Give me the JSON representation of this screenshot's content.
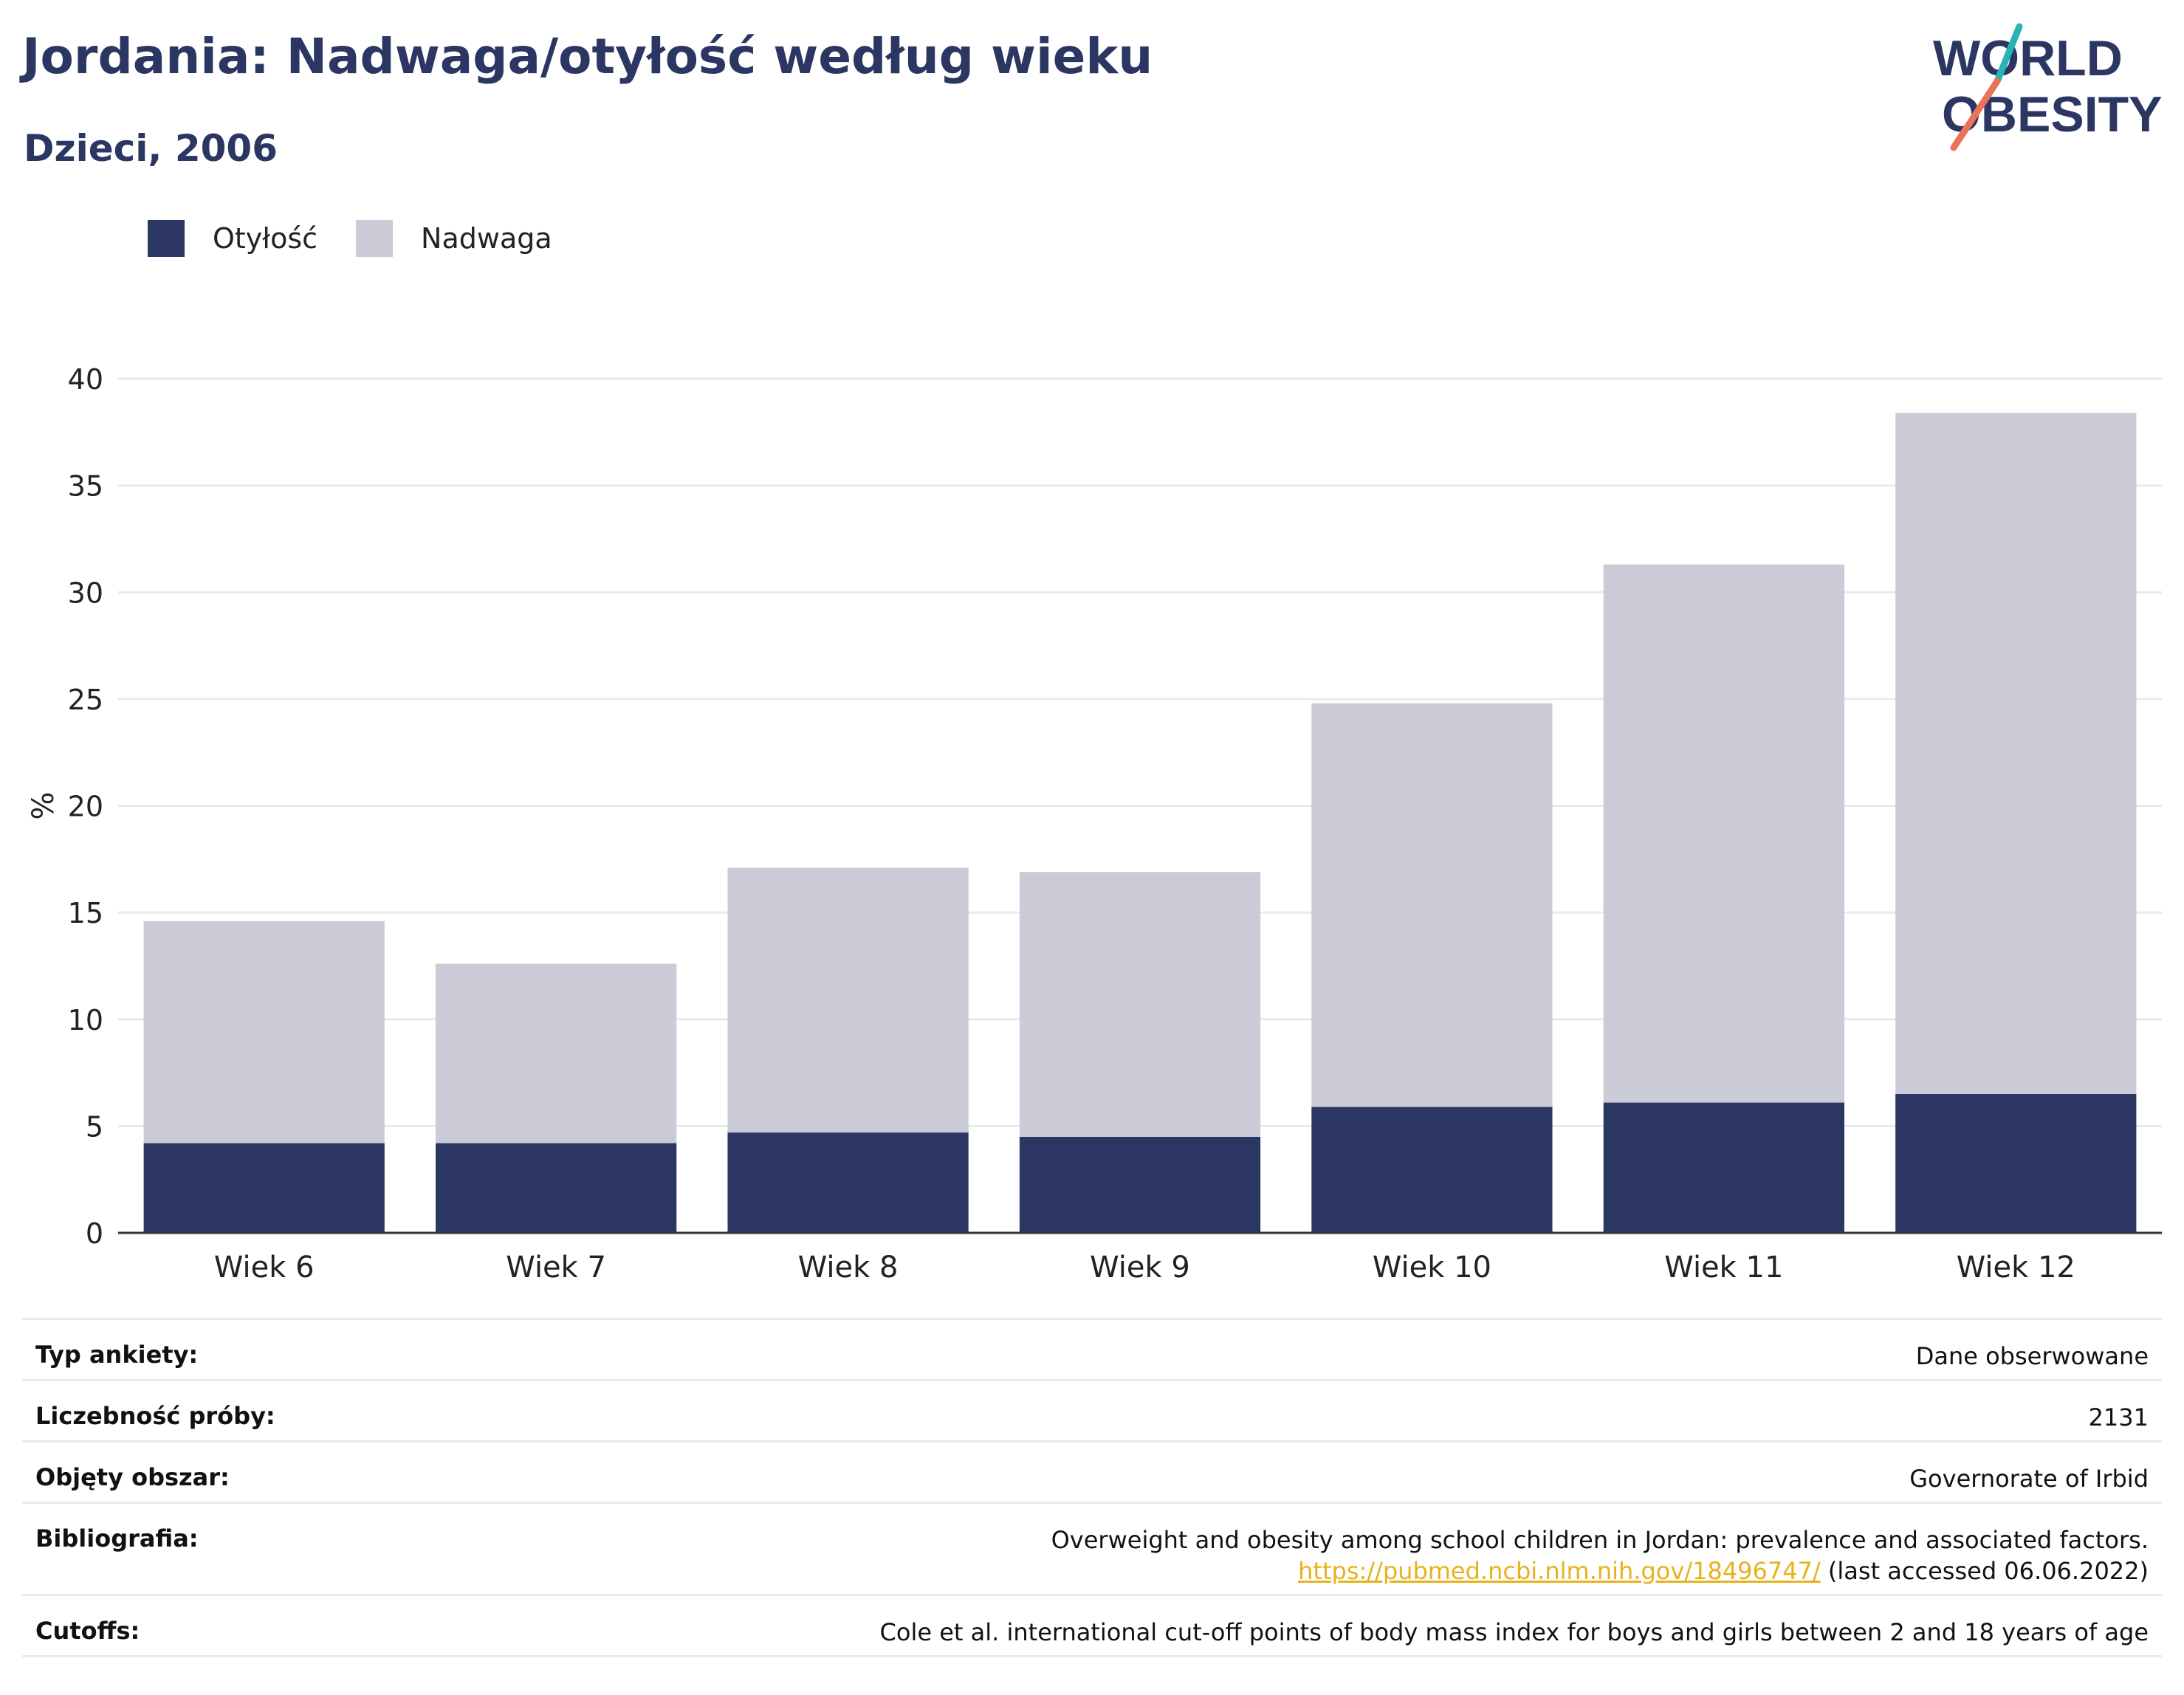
{
  "header": {
    "title": "Jordania: Nadwaga/otyłość według wieku",
    "subtitle": "Dzieci, 2006"
  },
  "logo": {
    "line1": "WORLD",
    "line2": "OBESITY",
    "colors": {
      "text": "#2b3663",
      "slash_top": "#2bb3b3",
      "slash_bottom": "#e8735a"
    }
  },
  "legend": [
    {
      "label": "Otyłość",
      "color": "#2b3663"
    },
    {
      "label": "Nadwaga",
      "color": "#cacbd7"
    }
  ],
  "chart_data": {
    "type": "bar",
    "stacked": true,
    "categories": [
      "Wiek 6",
      "Wiek 7",
      "Wiek 8",
      "Wiek 9",
      "Wiek 10",
      "Wiek 11",
      "Wiek 12"
    ],
    "series": [
      {
        "name": "Otyłość",
        "color": "#2b3663",
        "values": [
          4.2,
          4.2,
          4.7,
          4.5,
          5.9,
          6.1,
          6.5
        ]
      },
      {
        "name": "Nadwaga",
        "color": "#cacbd7",
        "values": [
          10.4,
          8.4,
          12.4,
          12.4,
          18.9,
          25.2,
          31.9
        ]
      }
    ],
    "ylabel": "%",
    "xlabel": "",
    "ylim": [
      0,
      40
    ],
    "yticks": [
      0,
      5,
      10,
      15,
      20,
      25,
      30,
      35,
      40
    ],
    "grid": true,
    "legend_position": "top-left"
  },
  "meta": {
    "rows": [
      {
        "label": "Typ ankiety:",
        "value": "Dane obserwowane"
      },
      {
        "label": "Liczebność próby:",
        "value": "2131"
      },
      {
        "label": "Objęty obszar:",
        "value": "Governorate of Irbid"
      },
      {
        "label": "Bibliografia:",
        "value": "Overweight and obesity among school children in Jordan: prevalence and associated factors.",
        "link": "https://pubmed.ncbi.nlm.nih.gov/18496747/",
        "suffix": " (last accessed 06.06.2022)"
      },
      {
        "label": "Cutoffs:",
        "value": "Cole et al. international cut-off points of body mass index for boys and girls between 2 and 18 years of age"
      }
    ]
  }
}
